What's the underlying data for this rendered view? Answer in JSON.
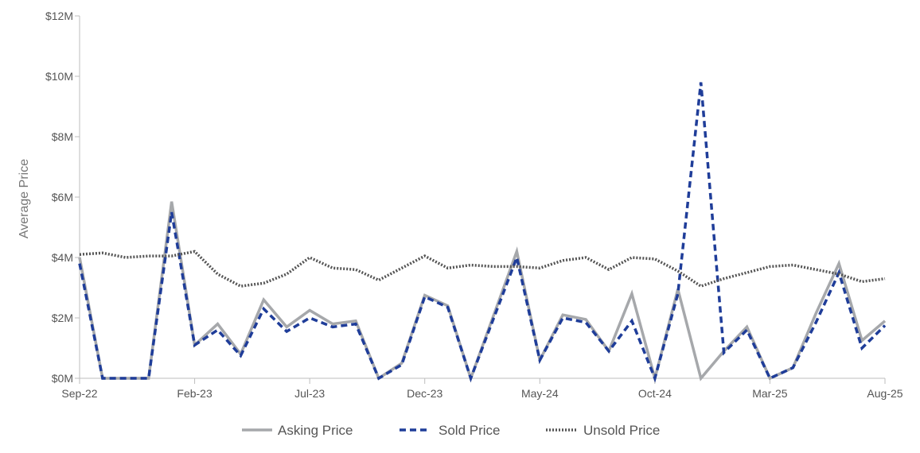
{
  "chart_data": {
    "type": "line",
    "ylabel": "Average Price",
    "xlabel": "",
    "ylim": [
      0,
      12
    ],
    "y_ticks": [
      0,
      2,
      4,
      6,
      8,
      10,
      12
    ],
    "y_tick_labels": [
      "$0M",
      "$2M",
      "$4M",
      "$6M",
      "$8M",
      "$10M",
      "$12M"
    ],
    "x": [
      "Sep-22",
      "Oct-22",
      "Nov-22",
      "Dec-22",
      "Jan-23",
      "Feb-23",
      "Mar-23",
      "Apr-23",
      "May-23",
      "Jun-23",
      "Jul-23",
      "Aug-23",
      "Sep-23",
      "Oct-23",
      "Nov-23",
      "Dec-23",
      "Jan-24",
      "Feb-24",
      "Mar-24",
      "Apr-24",
      "May-24",
      "Jun-24",
      "Jul-24",
      "Aug-24",
      "Sep-24",
      "Oct-24",
      "Nov-24",
      "Dec-24",
      "Jan-25",
      "Feb-25",
      "Mar-25",
      "Apr-25",
      "May-25",
      "Jun-25",
      "Jul-25",
      "Aug-25"
    ],
    "x_tick_labels": [
      "Sep-22",
      "Feb-23",
      "Jul-23",
      "Dec-23",
      "May-24",
      "Oct-24",
      "Mar-25",
      "Aug-25"
    ],
    "legend_position": "bottom",
    "grid": false,
    "series": [
      {
        "name": "Asking Price",
        "color": "#a6a8ab",
        "style": "solid",
        "values": [
          4.0,
          0,
          0,
          0,
          5.85,
          1.1,
          1.8,
          0.8,
          2.6,
          1.7,
          2.25,
          1.8,
          1.9,
          0,
          0.5,
          2.75,
          2.4,
          0,
          2.1,
          4.2,
          0.6,
          2.1,
          1.95,
          0.9,
          2.8,
          0,
          2.95,
          0,
          0.9,
          1.7,
          0,
          0.35,
          2.15,
          3.8,
          1.25,
          1.9
        ]
      },
      {
        "name": "Sold Price",
        "color": "#1f3d99",
        "style": "dashed",
        "values": [
          3.8,
          0,
          0,
          0,
          5.5,
          1.1,
          1.6,
          0.75,
          2.3,
          1.55,
          2.0,
          1.7,
          1.8,
          0,
          0.45,
          2.7,
          2.35,
          0,
          2.0,
          4.0,
          0.6,
          2.0,
          1.85,
          0.9,
          1.9,
          0,
          2.8,
          9.8,
          0.85,
          1.6,
          0,
          0.35,
          1.85,
          3.5,
          1.0,
          1.75
        ]
      },
      {
        "name": "Unsold Price",
        "color": "#555555",
        "style": "dotted",
        "values": [
          4.1,
          4.15,
          4.0,
          4.05,
          4.05,
          4.2,
          3.45,
          3.05,
          3.15,
          3.45,
          4.0,
          3.65,
          3.6,
          3.25,
          3.65,
          4.05,
          3.65,
          3.75,
          3.7,
          3.7,
          3.65,
          3.9,
          4.0,
          3.6,
          4.0,
          3.95,
          3.55,
          3.05,
          3.3,
          3.5,
          3.7,
          3.75,
          3.6,
          3.45,
          3.2,
          3.3
        ]
      }
    ]
  }
}
